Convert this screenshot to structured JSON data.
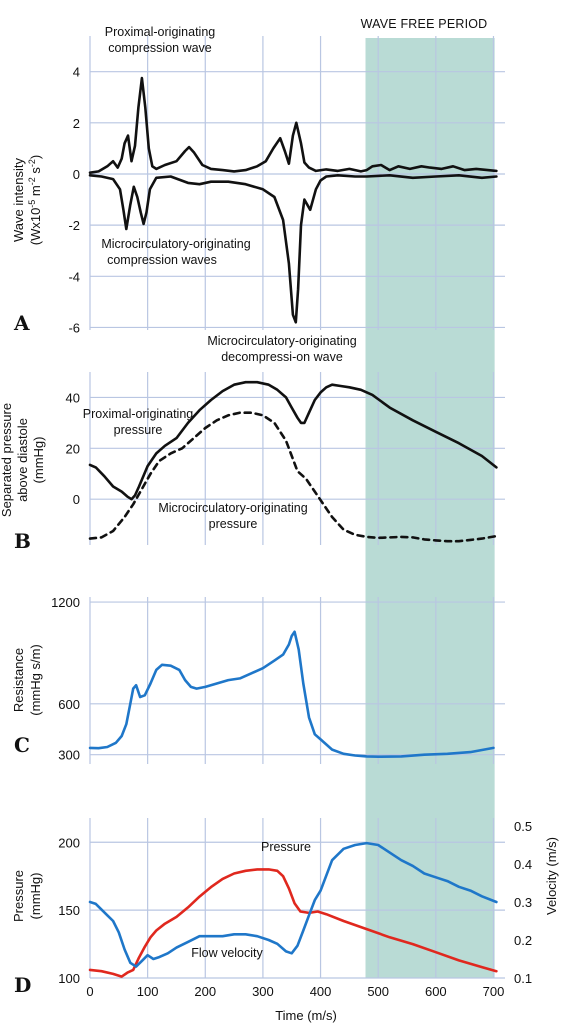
{
  "colors": {
    "wave_free_band": "#b9dbd5",
    "black_curve": "#111111",
    "blue_curve": "#1f77c9",
    "red_curve": "#e0281e",
    "grid": "#b9c6e2"
  },
  "wave_free_period": {
    "label": "WAVE FREE PERIOD",
    "x_range": [
      478,
      702
    ]
  },
  "x_axis": {
    "label": "Time (m/s)",
    "ticks": [
      0,
      100,
      200,
      300,
      400,
      500,
      600,
      700
    ],
    "range": [
      0,
      720
    ]
  },
  "chart_data": [
    {
      "panel": "A",
      "type": "line",
      "ylabel_line1": "Wave intensity",
      "ylabel_line2": "(Wx10",
      "ylabel_sup1": "-5",
      "ylabel_mid": " m",
      "ylabel_sup2": "-2",
      "ylabel_end": " s",
      "ylabel_sup3": "-2",
      "ylabel_close": ")",
      "yticks": [
        4,
        2,
        0,
        -2,
        -4,
        -6
      ],
      "ylim": [
        -6.1,
        4.3
      ],
      "annotations": {
        "top1": "Proximal-originating",
        "top2": "compression wave",
        "mid1": "Microcirculatory-originating",
        "mid2": "compression waves",
        "bot1": "Microcirculatory-originating",
        "bot2": "decompressi-on wave"
      },
      "series": [
        {
          "x": [
            0,
            15,
            30,
            40,
            48,
            55,
            60,
            66,
            72,
            78,
            84,
            90,
            96,
            102,
            108,
            115,
            130,
            150,
            165,
            172,
            180,
            195,
            210,
            230,
            250,
            270,
            290,
            305,
            318,
            330,
            338,
            345,
            352,
            358,
            366,
            372,
            380,
            392,
            410,
            430,
            450,
            470,
            480,
            490,
            505,
            520,
            535,
            555,
            575,
            590,
            610,
            630,
            650,
            670,
            690,
            705
          ],
          "y": [
            0.05,
            0.1,
            0.3,
            0.5,
            0.25,
            0.6,
            1.2,
            1.5,
            0.5,
            1.1,
            2.6,
            3.75,
            2.6,
            1.0,
            0.3,
            0.2,
            0.35,
            0.5,
            0.9,
            1.05,
            0.85,
            0.35,
            0.2,
            0.15,
            0.1,
            0.15,
            0.3,
            0.5,
            1.0,
            1.4,
            0.9,
            0.4,
            1.5,
            2.0,
            1.2,
            0.45,
            0.25,
            0.12,
            0.18,
            0.12,
            0.2,
            0.1,
            0.15,
            0.3,
            0.35,
            0.15,
            0.3,
            0.2,
            0.3,
            0.25,
            0.2,
            0.3,
            0.15,
            0.2,
            0.15,
            0.12
          ]
        },
        {
          "x": [
            0,
            20,
            40,
            52,
            58,
            63,
            70,
            76,
            82,
            88,
            93,
            98,
            104,
            115,
            140,
            170,
            190,
            210,
            240,
            270,
            300,
            320,
            335,
            345,
            352,
            357,
            361,
            366,
            372,
            382,
            392,
            400,
            410,
            430,
            460,
            480,
            520,
            560,
            600,
            640,
            680,
            705
          ],
          "y": [
            -0.05,
            -0.1,
            -0.2,
            -0.6,
            -1.4,
            -2.15,
            -1.2,
            -0.5,
            -0.9,
            -1.5,
            -1.95,
            -1.5,
            -0.6,
            -0.15,
            -0.1,
            -0.35,
            -0.4,
            -0.3,
            -0.3,
            -0.4,
            -0.6,
            -0.9,
            -1.8,
            -3.5,
            -5.5,
            -5.8,
            -4.5,
            -2.0,
            -1.0,
            -1.4,
            -0.6,
            -0.25,
            -0.1,
            -0.05,
            -0.1,
            -0.1,
            -0.05,
            -0.15,
            -0.1,
            -0.05,
            -0.15,
            -0.1
          ]
        }
      ]
    },
    {
      "panel": "B",
      "type": "line",
      "ylabel_line1": "Separated pressure",
      "ylabel_line2": "above diastole",
      "ylabel_line3": "(mmHg)",
      "yticks": [
        40,
        20,
        0
      ],
      "ylim": [
        -18,
        50
      ],
      "annotations": {
        "prox1": "Proximal-originating",
        "prox2": "pressure",
        "micro1": "Microcirculatory-originating",
        "micro2": "pressure"
      },
      "series": [
        {
          "style": "solid",
          "x": [
            0,
            10,
            25,
            40,
            55,
            65,
            72,
            78,
            85,
            100,
            115,
            130,
            150,
            170,
            190,
            210,
            230,
            250,
            270,
            290,
            310,
            325,
            340,
            350,
            360,
            366,
            372,
            380,
            390,
            400,
            410,
            420,
            435,
            450,
            470,
            490,
            520,
            560,
            600,
            640,
            680,
            705
          ],
          "y": [
            13.5,
            12.5,
            9,
            5,
            3,
            1,
            0,
            1.5,
            5,
            13,
            18,
            21,
            24,
            30,
            35,
            39,
            42.5,
            45,
            46,
            46,
            45,
            43,
            40,
            36,
            32,
            30,
            30,
            34,
            39,
            42,
            44,
            45,
            44.5,
            44,
            43,
            41,
            36,
            31,
            26.5,
            22,
            17,
            12.5
          ]
        },
        {
          "style": "dashed",
          "x": [
            0,
            20,
            40,
            60,
            75,
            90,
            105,
            120,
            140,
            160,
            180,
            200,
            220,
            240,
            260,
            280,
            300,
            320,
            340,
            360,
            375,
            390,
            405,
            420,
            440,
            460,
            480,
            500,
            520,
            540,
            560,
            580,
            600,
            620,
            640,
            660,
            680,
            705
          ],
          "y": [
            -15.5,
            -15,
            -12.5,
            -7,
            -2,
            4,
            10,
            15,
            18,
            20,
            24,
            28,
            31,
            33,
            34,
            34,
            33,
            30,
            23,
            11,
            8,
            3,
            -2,
            -7,
            -12,
            -14,
            -14.8,
            -15.2,
            -15,
            -14.8,
            -15,
            -15.8,
            -16.2,
            -16.5,
            -16.5,
            -16,
            -15.5,
            -14.5
          ]
        }
      ]
    },
    {
      "panel": "C",
      "type": "line",
      "ylabel_line1": "Resistance",
      "ylabel_line2": "(mmHg s/m)",
      "yticks": [
        1200,
        600,
        300
      ],
      "ylim": [
        245,
        1230
      ],
      "series": [
        {
          "x": [
            0,
            15,
            30,
            45,
            55,
            63,
            70,
            75,
            80,
            87,
            95,
            105,
            115,
            125,
            140,
            155,
            165,
            175,
            185,
            200,
            220,
            240,
            260,
            280,
            300,
            320,
            335,
            345,
            350,
            355,
            362,
            370,
            380,
            390,
            400,
            420,
            440,
            460,
            480,
            500,
            540,
            580,
            620,
            660,
            700
          ],
          "y": [
            340,
            338,
            345,
            370,
            410,
            480,
            600,
            690,
            710,
            640,
            650,
            720,
            800,
            830,
            825,
            800,
            740,
            700,
            690,
            700,
            720,
            740,
            750,
            780,
            810,
            855,
            890,
            950,
            1000,
            1025,
            920,
            720,
            520,
            420,
            390,
            330,
            305,
            295,
            290,
            288,
            290,
            300,
            305,
            315,
            340
          ]
        }
      ]
    },
    {
      "panel": "D",
      "type": "line",
      "ylabel_line1": "Pressure",
      "ylabel_line2": "(mmHg)",
      "ylabel_right": "Velocity (m/s)",
      "yticks": [
        200,
        150,
        100
      ],
      "ylim": [
        100,
        212
      ],
      "y2ticks": [
        0.5,
        0.4,
        0.3,
        0.2,
        0.1
      ],
      "y2lim": [
        0.1,
        0.5
      ],
      "annotations": {
        "pressure": "Pressure",
        "velocity": "Flow velocity"
      },
      "series": [
        {
          "name": "Pressure",
          "color": "red",
          "x": [
            0,
            20,
            40,
            55,
            65,
            75,
            85,
            95,
            105,
            115,
            130,
            150,
            170,
            190,
            210,
            230,
            250,
            270,
            290,
            310,
            325,
            335,
            345,
            355,
            365,
            380,
            395,
            410,
            440,
            480,
            520,
            560,
            600,
            640,
            680,
            705
          ],
          "y": [
            106,
            105,
            103,
            101,
            104,
            106,
            115,
            123,
            130,
            135,
            140,
            145,
            152,
            160,
            167,
            173,
            177,
            179,
            180,
            180,
            179,
            175,
            166,
            155,
            149,
            148,
            149,
            147,
            142,
            136,
            130,
            125,
            119,
            113,
            108,
            105
          ]
        },
        {
          "name": "Flow velocity",
          "color": "blue",
          "x": [
            0,
            10,
            20,
            30,
            40,
            50,
            60,
            70,
            80,
            90,
            100,
            110,
            120,
            135,
            150,
            170,
            190,
            210,
            230,
            250,
            270,
            290,
            310,
            325,
            340,
            350,
            360,
            370,
            380,
            390,
            400,
            420,
            440,
            460,
            480,
            500,
            520,
            540,
            560,
            580,
            600,
            620,
            640,
            660,
            680,
            705
          ],
          "y": [
            0.3,
            0.295,
            0.28,
            0.265,
            0.25,
            0.22,
            0.175,
            0.14,
            0.13,
            0.145,
            0.16,
            0.15,
            0.155,
            0.165,
            0.18,
            0.195,
            0.21,
            0.21,
            0.21,
            0.215,
            0.215,
            0.21,
            0.2,
            0.19,
            0.17,
            0.165,
            0.185,
            0.225,
            0.265,
            0.305,
            0.33,
            0.41,
            0.44,
            0.45,
            0.455,
            0.45,
            0.43,
            0.41,
            0.395,
            0.375,
            0.365,
            0.355,
            0.34,
            0.33,
            0.315,
            0.3
          ]
        }
      ]
    }
  ]
}
